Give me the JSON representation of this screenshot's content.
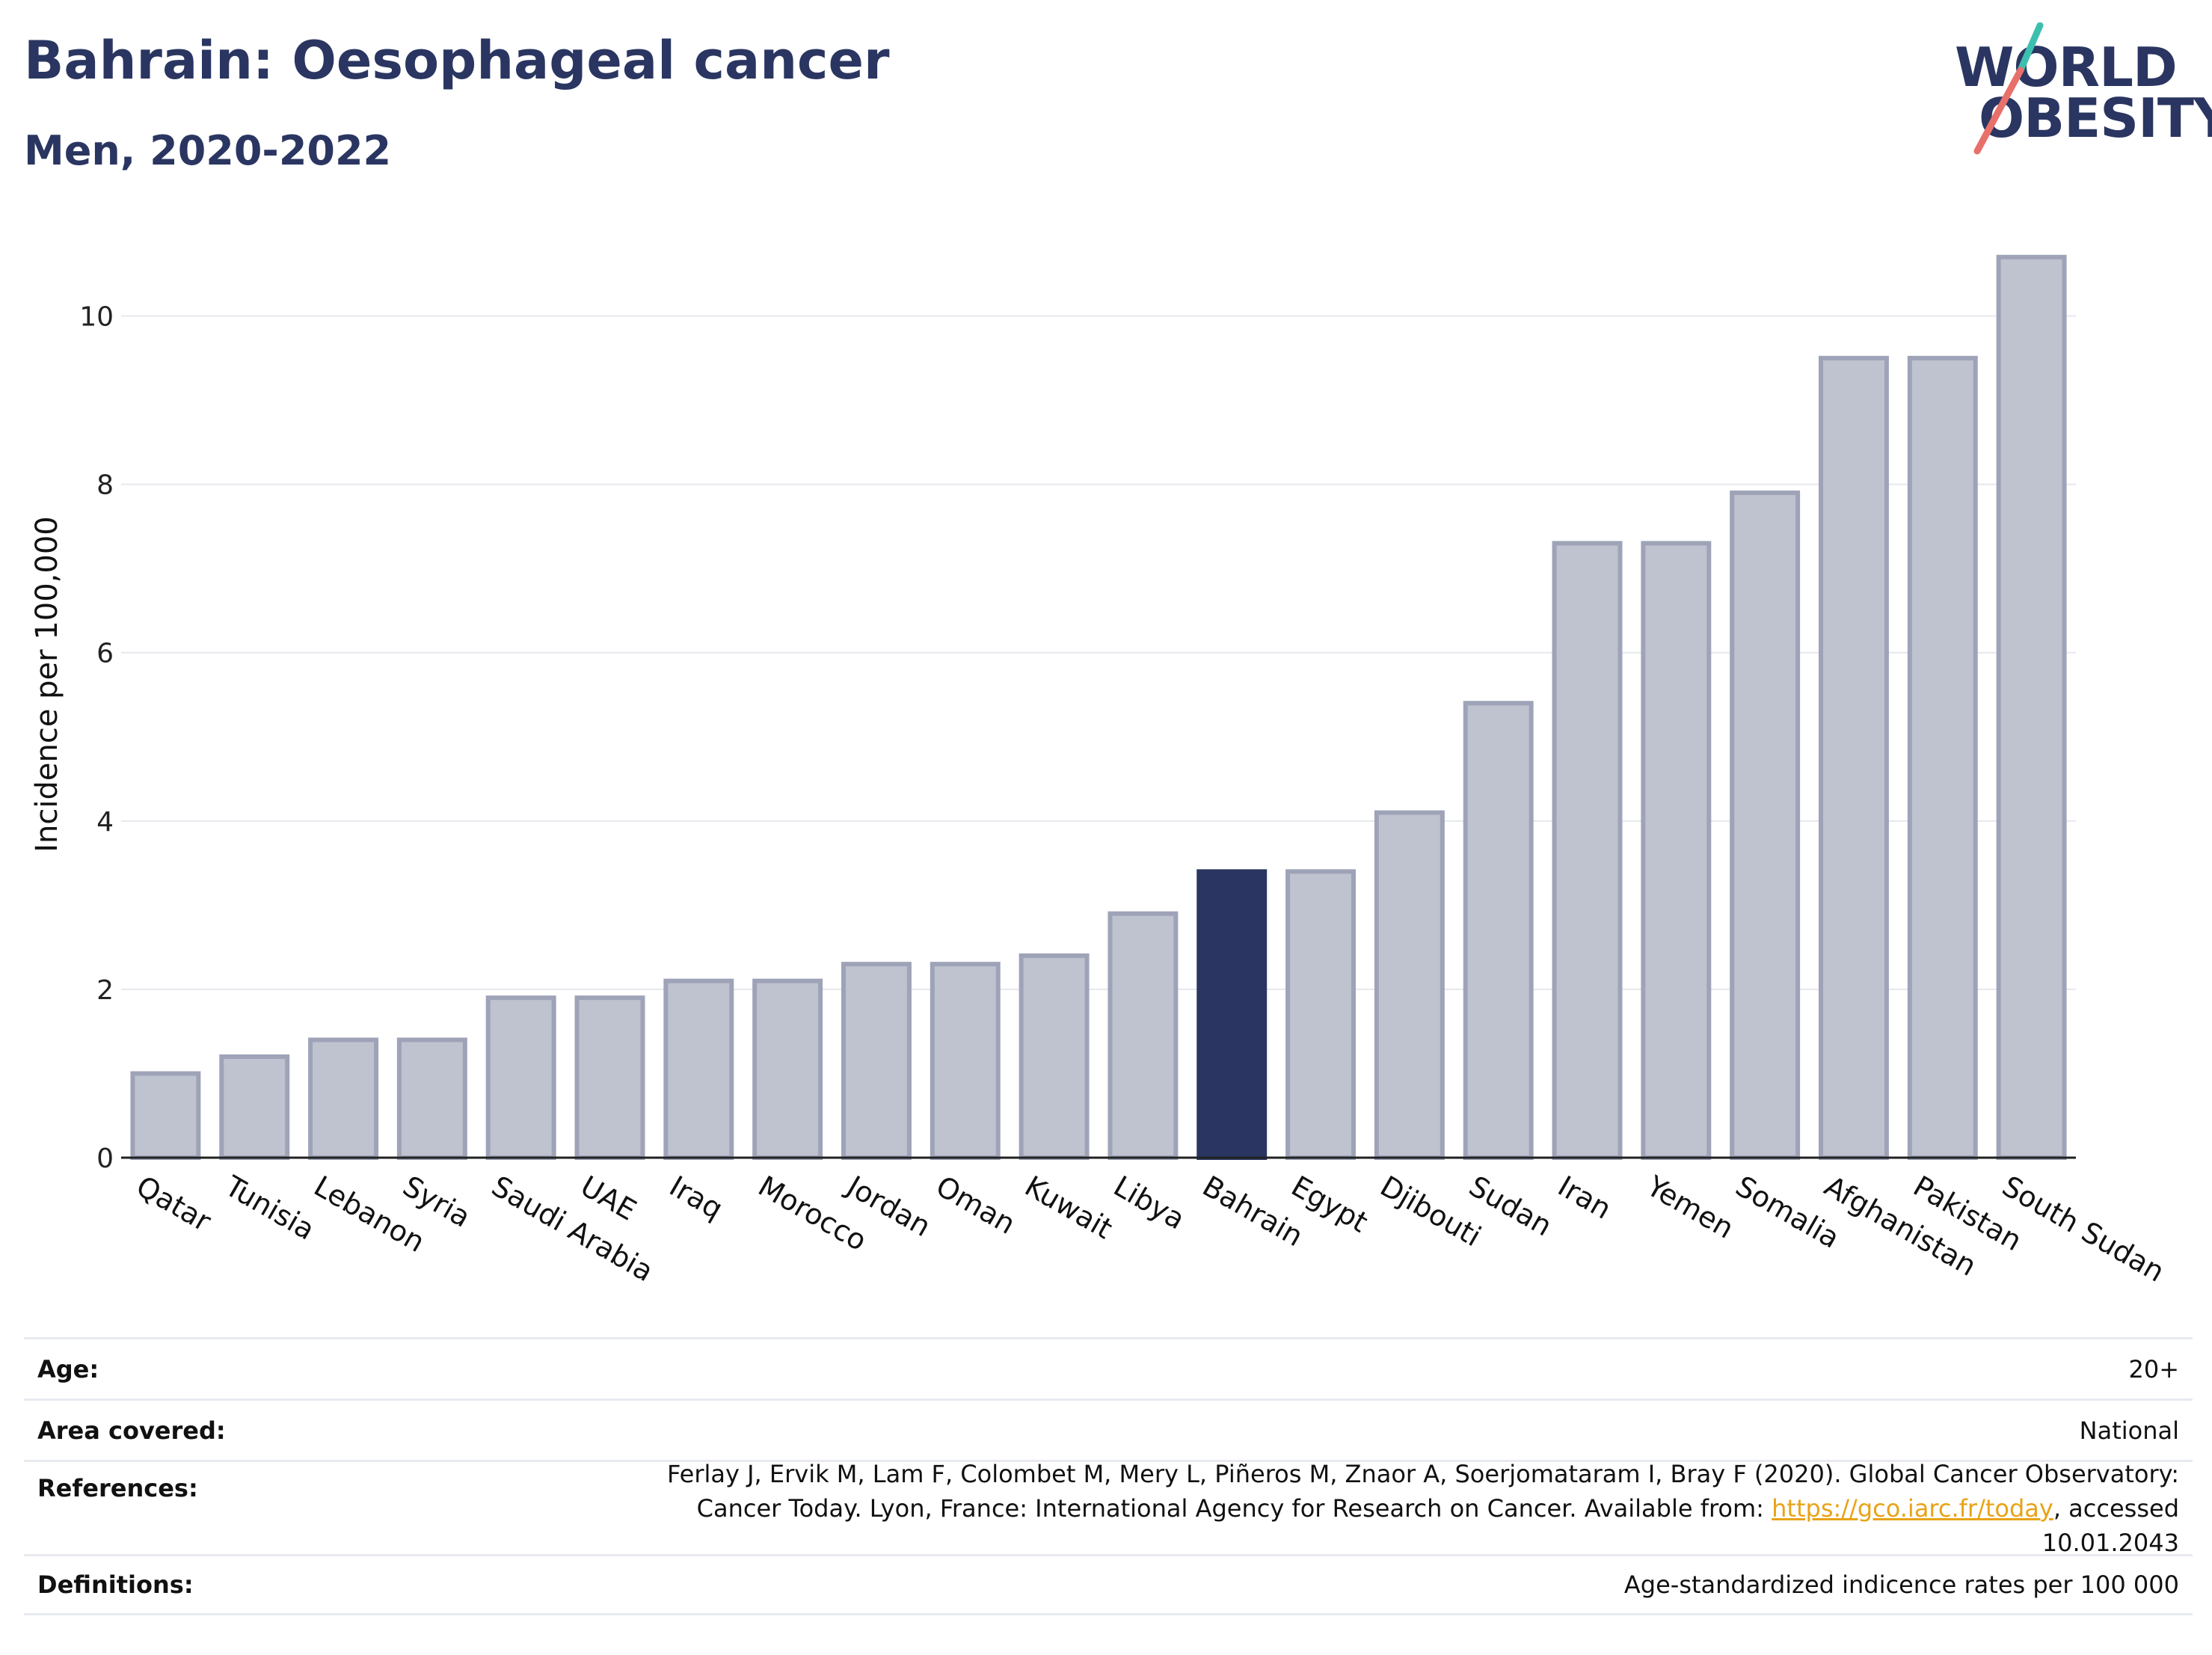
{
  "header": {
    "title": "Bahrain: Oesophageal cancer",
    "subtitle": "Men, 2020-2022"
  },
  "logo": {
    "line1": "WORLD",
    "line2": "OBESITY",
    "accent_teal": "#3dbfb0",
    "accent_red": "#e8706a"
  },
  "colors": {
    "bar": "#bfc2cf",
    "bar_border": "#9ea3b8",
    "highlight": "#2a3661",
    "grid": "#e6e8ee"
  },
  "chart_data": {
    "type": "bar",
    "title": "Bahrain: Oesophageal cancer",
    "subtitle": "Men, 2020-2022",
    "ylabel": "Incidence per 100,000",
    "xlabel": "",
    "ylim": [
      0,
      11
    ],
    "yticks": [
      0,
      2,
      4,
      6,
      8,
      10
    ],
    "grid": true,
    "highlight": "Bahrain",
    "categories": [
      "Qatar",
      "Tunisia",
      "Lebanon",
      "Syria",
      "Saudi Arabia",
      "UAE",
      "Iraq",
      "Morocco",
      "Jordan",
      "Oman",
      "Kuwait",
      "Libya",
      "Bahrain",
      "Egypt",
      "Djibouti",
      "Sudan",
      "Iran",
      "Yemen",
      "Somalia",
      "Afghanistan",
      "Pakistan",
      "South Sudan"
    ],
    "values": [
      1.0,
      1.2,
      1.4,
      1.4,
      1.9,
      1.9,
      2.1,
      2.1,
      2.3,
      2.3,
      2.4,
      2.9,
      3.4,
      3.4,
      4.1,
      5.4,
      7.3,
      7.3,
      7.9,
      9.5,
      9.5,
      10.7
    ]
  },
  "meta": [
    {
      "key": "Age:",
      "value": "20+"
    },
    {
      "key": "Area covered:",
      "value": "National"
    },
    {
      "key": "References:",
      "value_pre": "Ferlay J, Ervik M, Lam F, Colombet M, Mery L, Piñeros M, Znaor A, Soerjomataram I, Bray F (2020). Global Cancer Observatory: Cancer Today. Lyon, France: International Agency for Research on Cancer. Available from: ",
      "link": "https://gco.iarc.fr/today",
      "value_post": ", accessed 10.01.2043"
    },
    {
      "key": "Definitions:",
      "value": "Age-standardized indicence rates per 100 000"
    }
  ]
}
